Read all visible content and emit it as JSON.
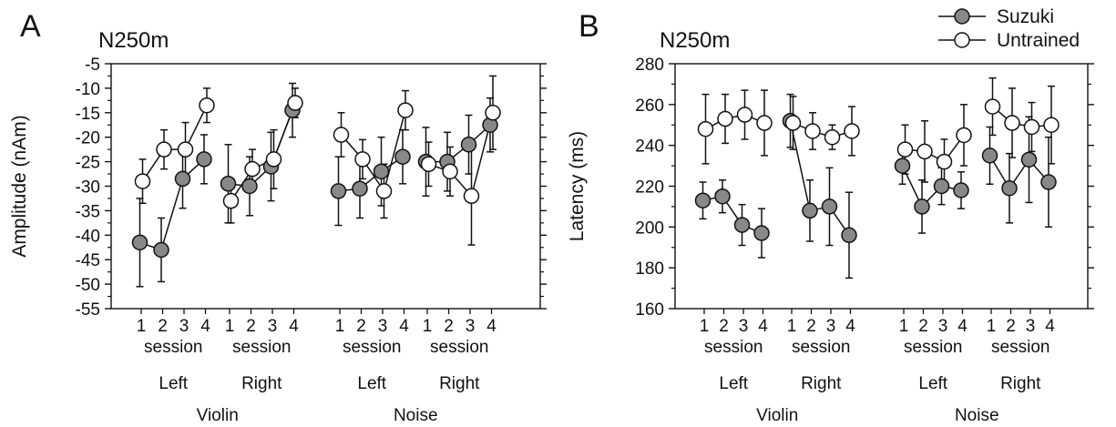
{
  "panel_letters": [
    "A",
    "B"
  ],
  "legend": {
    "entries": [
      {
        "label": "Suzuki",
        "fill": "#888888"
      },
      {
        "label": "Untrained",
        "fill": "#ffffff"
      }
    ]
  },
  "group_labels": {
    "session": "session",
    "sides": [
      "Left",
      "Right",
      "Left",
      "Right"
    ],
    "stimuli": [
      "Violin",
      "Noise"
    ]
  },
  "chart_data": [
    {
      "type": "line",
      "panel": "A",
      "title": "N250m",
      "xlabel": "",
      "ylabel": "Amplitude (nAm)",
      "ylim": [
        -55,
        -5
      ],
      "yticks": [
        -55,
        -50,
        -45,
        -40,
        -35,
        -30,
        -25,
        -20,
        -15,
        -10,
        -5
      ],
      "categories": [
        "1",
        "2",
        "3",
        "4",
        "1",
        "2",
        "3",
        "4",
        "1",
        "2",
        "3",
        "4",
        "1",
        "2",
        "3",
        "4"
      ],
      "groups": [
        "Violin Left",
        "Violin Right",
        "Noise Left",
        "Noise Right"
      ],
      "series": [
        {
          "name": "Suzuki",
          "color": "#888888",
          "values": [
            [
              -41.5,
              -43,
              -28.5,
              -24.5
            ],
            [
              -29.5,
              -30,
              -26,
              -14.5
            ],
            [
              -31,
              -30.5,
              -27,
              -24
            ],
            [
              -25,
              -25,
              -21.5,
              -17.5
            ]
          ],
          "errors": [
            [
              9,
              6.5,
              6,
              5
            ],
            [
              8,
              6,
              7,
              5.5
            ],
            [
              7,
              6,
              7,
              5.5
            ],
            [
              7,
              6,
              6,
              5.5
            ]
          ]
        },
        {
          "name": "Untrained",
          "color": "#ffffff",
          "values": [
            [
              -29,
              -22.5,
              -22.5,
              -13.5
            ],
            [
              -33,
              -26.5,
              -24.5,
              -13
            ],
            [
              -19.5,
              -24.5,
              -31,
              -14.5
            ],
            [
              -25.5,
              -27,
              -32,
              -15
            ]
          ],
          "errors": [
            [
              4.5,
              4,
              5.5,
              3.5
            ],
            [
              4.5,
              4,
              6,
              3
            ],
            [
              4.5,
              4,
              5.5,
              4
            ],
            [
              4.5,
              5,
              10,
              7.5
            ]
          ]
        }
      ]
    },
    {
      "type": "line",
      "panel": "B",
      "title": "N250m",
      "xlabel": "",
      "ylabel": "Latency (ms)",
      "ylim": [
        160,
        280
      ],
      "yticks": [
        160,
        180,
        200,
        220,
        240,
        260,
        280
      ],
      "categories": [
        "1",
        "2",
        "3",
        "4",
        "1",
        "2",
        "3",
        "4",
        "1",
        "2",
        "3",
        "4",
        "1",
        "2",
        "3",
        "4"
      ],
      "groups": [
        "Violin Left",
        "Violin Right",
        "Noise Left",
        "Noise Right"
      ],
      "series": [
        {
          "name": "Suzuki",
          "color": "#888888",
          "values": [
            [
              213,
              215,
              201,
              197
            ],
            [
              252,
              208,
              210,
              196
            ],
            [
              230,
              210,
              220,
              218
            ],
            [
              235,
              219,
              233,
              222
            ]
          ],
          "errors": [
            [
              9,
              8,
              10,
              12
            ],
            [
              13,
              15,
              19,
              21
            ],
            [
              9,
              13,
              9,
              9
            ],
            [
              14,
              17,
              21,
              22
            ]
          ]
        },
        {
          "name": "Untrained",
          "color": "#ffffff",
          "values": [
            [
              248,
              253,
              255,
              251
            ],
            [
              251,
              247,
              244,
              247
            ],
            [
              238,
              237,
              232,
              245
            ],
            [
              259,
              251,
              249,
              250
            ]
          ],
          "errors": [
            [
              17,
              12,
              12,
              16
            ],
            [
              13,
              9,
              6,
              12
            ],
            [
              12,
              15,
              11,
              15
            ],
            [
              14,
              17,
              12,
              19
            ]
          ]
        }
      ]
    }
  ]
}
